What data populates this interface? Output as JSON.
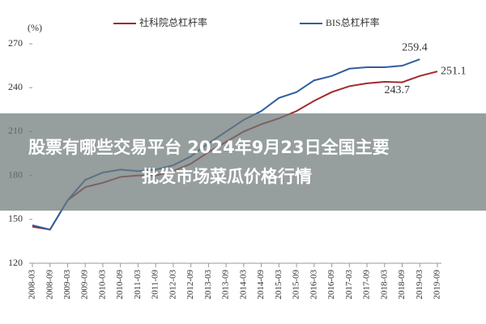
{
  "chart_data": {
    "type": "line",
    "y_label": "(%)",
    "categories": [
      "2008-03",
      "2008-09",
      "2009-03",
      "2009-09",
      "2010-03",
      "2010-09",
      "2011-03",
      "2011-09",
      "2012-03",
      "2012-09",
      "2013-03",
      "2013-09",
      "2014-03",
      "2014-09",
      "2015-03",
      "2015-09",
      "2016-03",
      "2016-09",
      "2017-03",
      "2017-09",
      "2018-03",
      "2018-09",
      "2019-03",
      "2019-09"
    ],
    "series": [
      {
        "name": "社科院总杠杆率",
        "color": "#a3282c",
        "values": [
          145,
          143,
          163,
          172,
          175,
          179,
          180,
          180,
          183,
          188,
          196,
          203,
          210,
          215,
          219,
          224,
          231,
          237,
          241,
          243,
          244,
          243.7,
          248,
          251.1
        ],
        "value_labels": [
          null,
          null,
          null,
          null,
          null,
          null,
          null,
          null,
          null,
          null,
          null,
          null,
          null,
          null,
          null,
          null,
          null,
          null,
          null,
          null,
          null,
          "243.7",
          null,
          "251.1"
        ]
      },
      {
        "name": "BIS总杠杆率",
        "color": "#2f5f9e",
        "values": [
          146,
          143,
          163,
          177,
          182,
          184,
          183,
          184,
          187,
          193,
          202,
          210,
          218,
          224,
          233,
          237,
          245,
          248,
          253,
          254,
          254,
          255,
          259.4,
          null
        ],
        "value_labels": [
          null,
          null,
          null,
          null,
          null,
          null,
          null,
          null,
          null,
          null,
          null,
          null,
          null,
          null,
          null,
          null,
          null,
          null,
          null,
          null,
          null,
          null,
          "259.4",
          null
        ]
      }
    ],
    "ylim": [
      120,
      280
    ],
    "yticks": [
      120,
      150,
      180,
      210,
      240,
      270
    ]
  },
  "banner": {
    "lines": [
      "股票有哪些交易平台 2024年9月23日全国主要",
      "批发市场菜瓜价格行情"
    ]
  }
}
